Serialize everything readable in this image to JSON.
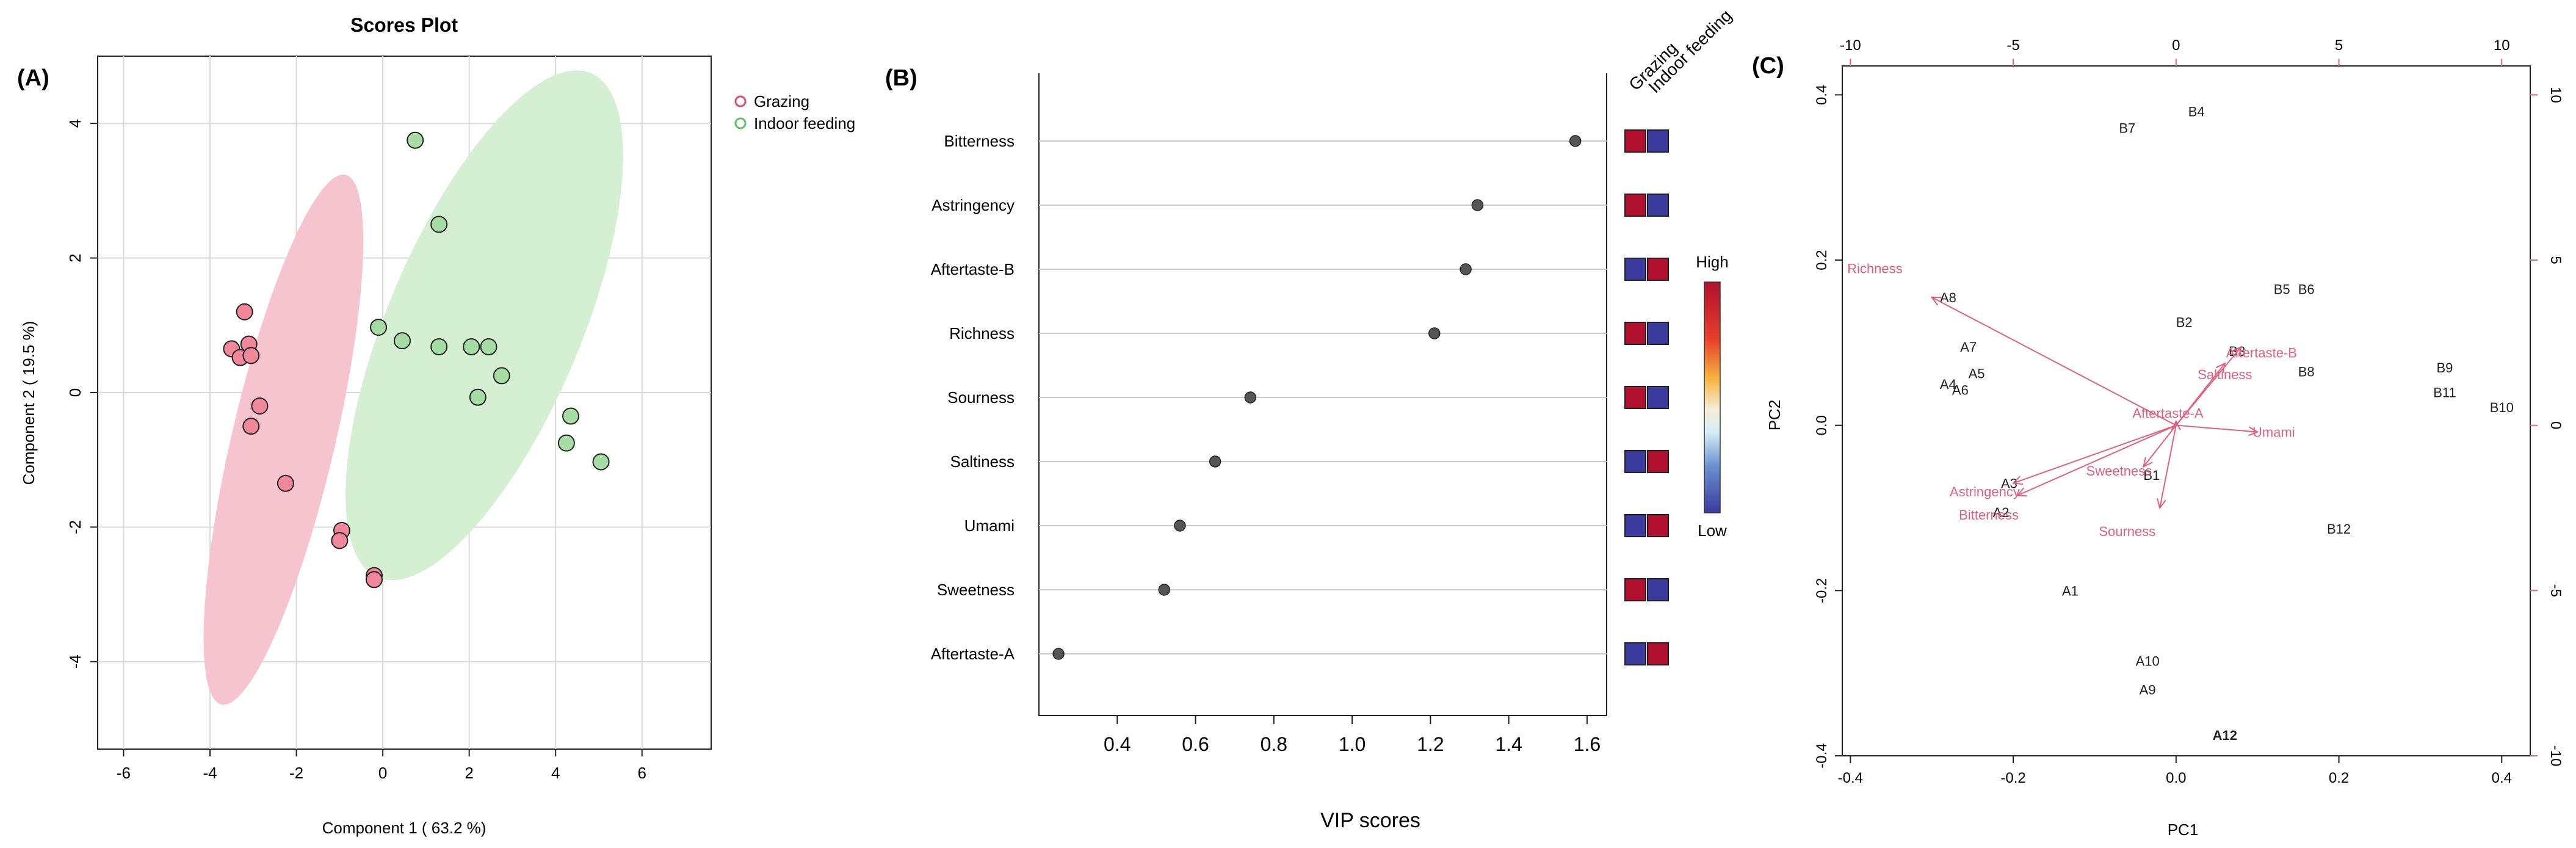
{
  "panels": {
    "a": {
      "label": "(A)"
    },
    "b": {
      "label": "(B)"
    },
    "c": {
      "label": "(C)"
    }
  },
  "chart_data": [
    {
      "type": "scatter",
      "title": "Scores Plot",
      "xlabel": "Component 1 ( 63.2 %)",
      "ylabel": "Component 2 ( 19.5 %)",
      "xlim": [
        -6.6,
        7.6
      ],
      "ylim": [
        -5.3,
        5.0
      ],
      "xticks": [
        -6,
        -4,
        -2,
        0,
        2,
        4,
        6
      ],
      "yticks": [
        -4,
        -2,
        0,
        2,
        4
      ],
      "grid": true,
      "legend_position": "top-right",
      "colors": {
        "Grazing": "#f0879b",
        "Indoor feeding": "#a6dda5",
        "Grazing_ellipse": "#f6c4cf",
        "Indoor feeding_ellipse": "#d4efd2",
        "Grazing_legend": "#e04b6b",
        "Indoor feeding_legend": "#5fc15f"
      },
      "series": [
        {
          "name": "Grazing",
          "ellipse": {
            "cx": -2.3,
            "cy": -0.7,
            "rx": 4.2,
            "ry": 1.15,
            "angle": -69
          },
          "points": [
            [
              -3.2,
              1.2
            ],
            [
              -3.5,
              0.65
            ],
            [
              -3.3,
              0.52
            ],
            [
              -3.1,
              0.72
            ],
            [
              -3.05,
              0.55
            ],
            [
              -2.85,
              -0.2
            ],
            [
              -3.05,
              -0.5
            ],
            [
              -2.25,
              -1.35
            ],
            [
              -0.95,
              -2.05
            ],
            [
              -1.0,
              -2.2
            ],
            [
              -0.2,
              -2.72
            ],
            [
              -0.2,
              -2.78
            ]
          ]
        },
        {
          "name": "Indoor feeding",
          "ellipse": {
            "cx": 2.35,
            "cy": 1.0,
            "rx": 4.55,
            "ry": 2.0,
            "angle": -52
          },
          "points": [
            [
              0.75,
              3.75
            ],
            [
              1.3,
              2.5
            ],
            [
              -0.1,
              0.97
            ],
            [
              0.45,
              0.77
            ],
            [
              1.3,
              0.68
            ],
            [
              2.05,
              0.68
            ],
            [
              2.45,
              0.68
            ],
            [
              2.75,
              0.25
            ],
            [
              2.2,
              -0.07
            ],
            [
              4.35,
              -0.35
            ],
            [
              4.25,
              -0.75
            ],
            [
              5.05,
              -1.03
            ]
          ]
        }
      ]
    },
    {
      "type": "dot",
      "xlabel": "VIP scores",
      "xlim": [
        0.2,
        1.65
      ],
      "xticks": [
        0.4,
        0.6,
        0.8,
        1.0,
        1.2,
        1.4,
        1.6
      ],
      "tick_labels": [
        "0.4",
        "0.6",
        "0.8",
        "1.0",
        "1.2",
        "1.4",
        "1.6"
      ],
      "heat_columns": [
        "Grazing",
        "Indoor feeding"
      ],
      "colorbar": {
        "high": "High",
        "low": "Low"
      },
      "colors": {
        "high": "#b2102f",
        "low": "#3b3b9e",
        "dot": "#555555"
      },
      "categories": [
        "Bitterness",
        "Astringency",
        "Aftertaste-B",
        "Richness",
        "Sourness",
        "Saltiness",
        "Umami",
        "Sweetness",
        "Aftertaste-A"
      ],
      "values": [
        1.57,
        1.32,
        1.29,
        1.21,
        0.74,
        0.65,
        0.56,
        0.52,
        0.25
      ],
      "heat": [
        [
          "high",
          "low"
        ],
        [
          "high",
          "low"
        ],
        [
          "low",
          "high"
        ],
        [
          "high",
          "low"
        ],
        [
          "high",
          "low"
        ],
        [
          "low",
          "high"
        ],
        [
          "low",
          "high"
        ],
        [
          "high",
          "low"
        ],
        [
          "low",
          "high"
        ]
      ]
    },
    {
      "type": "biplot",
      "xlabel": "PC1",
      "ylabel": "PC2",
      "xlim": [
        -0.41,
        0.435
      ],
      "ylim": [
        -0.4,
        0.435
      ],
      "xticks": [
        -0.4,
        -0.2,
        0.0,
        0.2,
        0.4
      ],
      "xtick_labels": [
        "-0.4",
        "-0.2",
        "0.0",
        "0.2",
        "0.4"
      ],
      "yticks": [
        -0.4,
        -0.2,
        0.0,
        0.2,
        0.4
      ],
      "ytick_labels": [
        "-0.4",
        "-0.2",
        "0.0",
        "0.2",
        "0.4"
      ],
      "top_ticks": [
        -10,
        -5,
        0,
        5,
        10
      ],
      "top_tick_labels": [
        "-10",
        "-5",
        "0",
        "5",
        "10"
      ],
      "right_ticks": [
        -10,
        -5,
        0,
        5,
        10
      ],
      "right_tick_labels": [
        "-10",
        "-5",
        "0",
        "5",
        "10"
      ],
      "secondary_scale": 0.04,
      "colors": {
        "vector": "#e0607e",
        "sample": "#222222",
        "axis": "#e0607e"
      },
      "samples": [
        {
          "label": "B4",
          "x": 0.025,
          "y": 0.38
        },
        {
          "label": "B7",
          "x": -0.06,
          "y": 0.36
        },
        {
          "label": "B2",
          "x": 0.01,
          "y": 0.125
        },
        {
          "label": "B5",
          "x": 0.13,
          "y": 0.165
        },
        {
          "label": "B6",
          "x": 0.16,
          "y": 0.165
        },
        {
          "label": "B3",
          "x": 0.075,
          "y": 0.09
        },
        {
          "label": "B8",
          "x": 0.16,
          "y": 0.065
        },
        {
          "label": "B9",
          "x": 0.33,
          "y": 0.07
        },
        {
          "label": "B11",
          "x": 0.33,
          "y": 0.04
        },
        {
          "label": "B10",
          "x": 0.4,
          "y": 0.022
        },
        {
          "label": "B12",
          "x": 0.2,
          "y": -0.125
        },
        {
          "label": "B1",
          "x": -0.03,
          "y": -0.06
        },
        {
          "label": "A8",
          "x": -0.28,
          "y": 0.155
        },
        {
          "label": "A7",
          "x": -0.255,
          "y": 0.095
        },
        {
          "label": "A5",
          "x": -0.245,
          "y": 0.063
        },
        {
          "label": "A4",
          "x": -0.28,
          "y": 0.05
        },
        {
          "label": "A6",
          "x": -0.265,
          "y": 0.043
        },
        {
          "label": "A3",
          "x": -0.205,
          "y": -0.07
        },
        {
          "label": "A2",
          "x": -0.215,
          "y": -0.105
        },
        {
          "label": "A1",
          "x": -0.13,
          "y": -0.2
        },
        {
          "label": "A10",
          "x": -0.035,
          "y": -0.285
        },
        {
          "label": "A9",
          "x": -0.035,
          "y": -0.32
        },
        {
          "label": "A12",
          "x": 0.06,
          "y": -0.375,
          "bold": true
        }
      ],
      "vectors": [
        {
          "label": "Richness",
          "x": -0.3,
          "y": 0.155,
          "lx": -0.37,
          "ly": 0.19
        },
        {
          "label": "Aftertaste-B",
          "x": 0.08,
          "y": 0.095,
          "lx": 0.105,
          "ly": 0.088
        },
        {
          "label": "Saltiness",
          "x": 0.06,
          "y": 0.075,
          "lx": 0.06,
          "ly": 0.062
        },
        {
          "label": "Aftertaste-A",
          "x": 0.0,
          "y": 0.005,
          "lx": -0.01,
          "ly": 0.015
        },
        {
          "label": "Umami",
          "x": 0.1,
          "y": -0.008,
          "lx": 0.12,
          "ly": -0.008
        },
        {
          "label": "Sweetness",
          "x": -0.04,
          "y": -0.05,
          "lx": -0.07,
          "ly": -0.055
        },
        {
          "label": "Astringency",
          "x": -0.2,
          "y": -0.07,
          "lx": -0.235,
          "ly": -0.08
        },
        {
          "label": "Bitterness",
          "x": -0.195,
          "y": -0.085,
          "lx": -0.23,
          "ly": -0.108
        },
        {
          "label": "Sourness",
          "x": -0.02,
          "y": -0.1,
          "lx": -0.06,
          "ly": -0.128
        }
      ]
    }
  ]
}
